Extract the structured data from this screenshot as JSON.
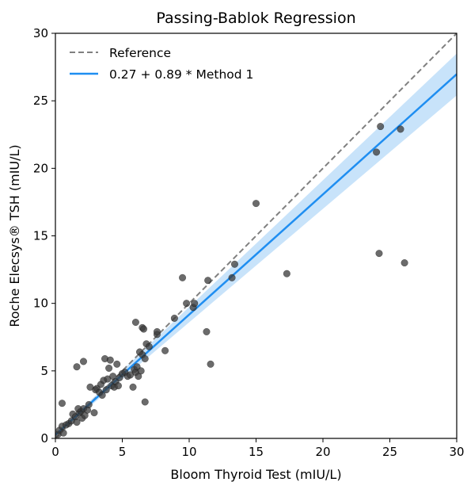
{
  "chart_data": {
    "type": "scatter",
    "title": "Passing-Bablok Regression",
    "xlabel": "Bloom Thyroid Test (mIU/L)",
    "ylabel": "Roche Elecsys® TSH (mIU/L)",
    "xlim": [
      0,
      30
    ],
    "ylim": [
      0,
      30
    ],
    "xticks": [
      "0",
      "5",
      "10",
      "15",
      "20",
      "25",
      "30"
    ],
    "yticks": [
      "0",
      "5",
      "10",
      "15",
      "20",
      "25",
      "30"
    ],
    "grid": false,
    "legend_position": "top-left",
    "reference": {
      "name": "Reference",
      "slope": 1,
      "intercept": 0,
      "color": "#808080",
      "style": "dashed"
    },
    "regression": {
      "name": "0.27 + 0.89 * Method 1",
      "intercept": 0.27,
      "slope": 0.89,
      "color": "#1f8ef1",
      "ci_color": "#aad4f7",
      "ci_at_x0": [
        0.2,
        0.35
      ],
      "ci_at_x30": [
        25.4,
        28.5
      ]
    },
    "points_color": "#3a3a3a",
    "points": [
      [
        0.2,
        0.3
      ],
      [
        0.3,
        0.6
      ],
      [
        0.5,
        0.9
      ],
      [
        0.6,
        0.4
      ],
      [
        0.8,
        1.0
      ],
      [
        0.5,
        2.6
      ],
      [
        1.0,
        1.1
      ],
      [
        1.2,
        1.3
      ],
      [
        1.3,
        1.8
      ],
      [
        1.5,
        1.6
      ],
      [
        1.6,
        1.2
      ],
      [
        1.8,
        1.9
      ],
      [
        1.9,
        2.0
      ],
      [
        2.0,
        1.5
      ],
      [
        2.1,
        2.2
      ],
      [
        2.2,
        1.7
      ],
      [
        2.4,
        2.1
      ],
      [
        2.5,
        2.5
      ],
      [
        1.7,
        2.2
      ],
      [
        1.6,
        5.3
      ],
      [
        2.1,
        5.7
      ],
      [
        2.6,
        3.8
      ],
      [
        2.9,
        1.9
      ],
      [
        3.0,
        3.6
      ],
      [
        3.1,
        3.7
      ],
      [
        3.3,
        3.4
      ],
      [
        3.4,
        4.0
      ],
      [
        3.5,
        3.2
      ],
      [
        3.6,
        4.3
      ],
      [
        3.7,
        5.9
      ],
      [
        3.8,
        3.6
      ],
      [
        3.9,
        4.4
      ],
      [
        4.0,
        5.2
      ],
      [
        4.1,
        5.8
      ],
      [
        4.2,
        3.9
      ],
      [
        4.3,
        4.6
      ],
      [
        4.4,
        3.8
      ],
      [
        4.5,
        4.2
      ],
      [
        4.6,
        5.5
      ],
      [
        4.7,
        3.9
      ],
      [
        4.8,
        4.5
      ],
      [
        5.0,
        4.8
      ],
      [
        5.2,
        4.9
      ],
      [
        5.4,
        4.6
      ],
      [
        5.6,
        4.7
      ],
      [
        5.8,
        3.8
      ],
      [
        5.9,
        5.1
      ],
      [
        6.0,
        4.9
      ],
      [
        6.1,
        5.3
      ],
      [
        6.2,
        4.6
      ],
      [
        6.3,
        6.4
      ],
      [
        6.4,
        5.0
      ],
      [
        6.5,
        6.2
      ],
      [
        6.0,
        8.6
      ],
      [
        6.5,
        8.2
      ],
      [
        6.6,
        8.1
      ],
      [
        6.7,
        5.9
      ],
      [
        6.8,
        7.0
      ],
      [
        6.7,
        2.7
      ],
      [
        7.0,
        6.8
      ],
      [
        7.6,
        7.7
      ],
      [
        7.6,
        7.9
      ],
      [
        8.2,
        6.5
      ],
      [
        8.9,
        8.9
      ],
      [
        9.5,
        11.9
      ],
      [
        9.8,
        10.0
      ],
      [
        10.3,
        9.7
      ],
      [
        10.4,
        10.0
      ],
      [
        11.3,
        7.9
      ],
      [
        11.4,
        11.7
      ],
      [
        11.6,
        5.5
      ],
      [
        13.2,
        11.9
      ],
      [
        13.4,
        12.9
      ],
      [
        15.0,
        17.4
      ],
      [
        17.3,
        12.2
      ],
      [
        24.0,
        21.2
      ],
      [
        24.3,
        23.1
      ],
      [
        25.8,
        22.9
      ],
      [
        24.2,
        13.7
      ],
      [
        26.1,
        13.0
      ]
    ]
  }
}
